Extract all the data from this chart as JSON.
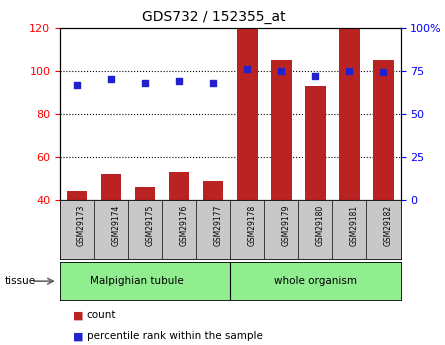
{
  "title": "GDS732 / 152355_at",
  "samples": [
    "GSM29173",
    "GSM29174",
    "GSM29175",
    "GSM29176",
    "GSM29177",
    "GSM29178",
    "GSM29179",
    "GSM29180",
    "GSM29181",
    "GSM29182"
  ],
  "counts": [
    44,
    52,
    46,
    53,
    49,
    120,
    105,
    93,
    120,
    105
  ],
  "percentiles": [
    67,
    70,
    68,
    69,
    68,
    76,
    75,
    72,
    75,
    74
  ],
  "tissue_labels": [
    "Malpighian tubule",
    "whole organism"
  ],
  "tissue_split": 5,
  "tissue_color": "#90EE90",
  "ylim_left": [
    40,
    120
  ],
  "ylim_right": [
    0,
    100
  ],
  "yticks_left": [
    40,
    60,
    80,
    100,
    120
  ],
  "yticks_right": [
    0,
    25,
    50,
    75,
    100
  ],
  "bar_color": "#BB2222",
  "dot_color": "#2222CC",
  "bg_color": "#FFFFFF",
  "plot_bg": "#FFFFFF",
  "tick_area_color": "#C8C8C8",
  "legend_count_label": "count",
  "legend_pct_label": "percentile rank within the sample"
}
